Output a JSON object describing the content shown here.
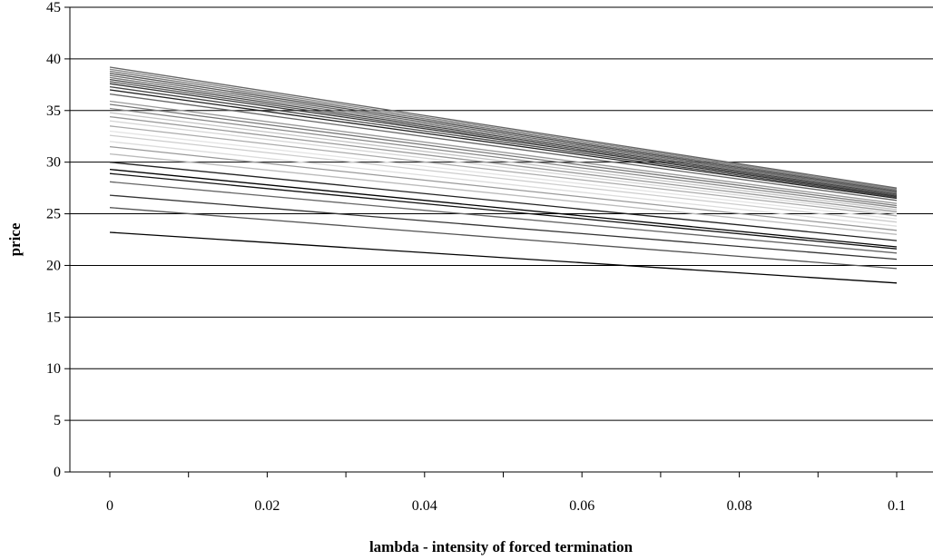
{
  "chart_data": {
    "type": "line",
    "title": "",
    "xlabel": "lambda - intensity of forced termination",
    "ylabel": "price",
    "xlim": [
      0,
      0.1
    ],
    "ylim": [
      0,
      45
    ],
    "x": [
      0,
      0.1
    ],
    "x_ticks": [
      "0",
      "0.02",
      "0.04",
      "0.06",
      "0.08",
      "0.1"
    ],
    "y_ticks": [
      "0",
      "5",
      "10",
      "15",
      "20",
      "25",
      "30",
      "35",
      "40",
      "45"
    ],
    "grid": "horizontal",
    "legend": "none",
    "series": [
      {
        "values": [
          23.2,
          18.3
        ],
        "color": "#000000"
      },
      {
        "values": [
          25.6,
          19.7
        ],
        "color": "#555555"
      },
      {
        "values": [
          26.8,
          20.6
        ],
        "color": "#333333"
      },
      {
        "values": [
          28.1,
          21.2
        ],
        "color": "#666666"
      },
      {
        "values": [
          28.9,
          21.6
        ],
        "color": "#111111"
      },
      {
        "values": [
          29.3,
          21.8
        ],
        "color": "#000000"
      },
      {
        "values": [
          30.0,
          22.4
        ],
        "color": "#222222"
      },
      {
        "values": [
          30.8,
          23.0
        ],
        "color": "#bbbbbb"
      },
      {
        "values": [
          31.5,
          23.4
        ],
        "color": "#999999"
      },
      {
        "values": [
          32.0,
          23.8
        ],
        "color": "#dddddd"
      },
      {
        "values": [
          32.6,
          24.2
        ],
        "color": "#cccccc"
      },
      {
        "values": [
          33.0,
          24.5
        ],
        "color": "#e4e4e4"
      },
      {
        "values": [
          33.5,
          24.8
        ],
        "color": "#aaaaaa"
      },
      {
        "values": [
          34.0,
          25.0
        ],
        "color": "#d6d6d6"
      },
      {
        "values": [
          34.4,
          25.2
        ],
        "color": "#999999"
      },
      {
        "values": [
          34.8,
          25.4
        ],
        "color": "#c4c4c4"
      },
      {
        "values": [
          35.2,
          25.6
        ],
        "color": "#888888"
      },
      {
        "values": [
          35.6,
          25.8
        ],
        "color": "#777777"
      },
      {
        "values": [
          35.9,
          26.0
        ],
        "color": "#999999"
      },
      {
        "values": [
          36.6,
          26.3
        ],
        "color": "#666666"
      },
      {
        "values": [
          37.0,
          26.5
        ],
        "color": "#222222"
      },
      {
        "values": [
          37.3,
          26.6
        ],
        "color": "#444444"
      },
      {
        "values": [
          37.6,
          26.7
        ],
        "color": "#333333"
      },
      {
        "values": [
          37.8,
          26.8
        ],
        "color": "#555555"
      },
      {
        "values": [
          38.0,
          26.9
        ],
        "color": "#444444"
      },
      {
        "values": [
          38.2,
          27.0
        ],
        "color": "#777777"
      },
      {
        "values": [
          38.4,
          27.1
        ],
        "color": "#666666"
      },
      {
        "values": [
          38.6,
          27.2
        ],
        "color": "#555555"
      },
      {
        "values": [
          38.8,
          27.3
        ],
        "color": "#777777"
      },
      {
        "values": [
          39.0,
          27.4
        ],
        "color": "#888888"
      },
      {
        "values": [
          39.2,
          27.5
        ],
        "color": "#666666"
      }
    ]
  }
}
